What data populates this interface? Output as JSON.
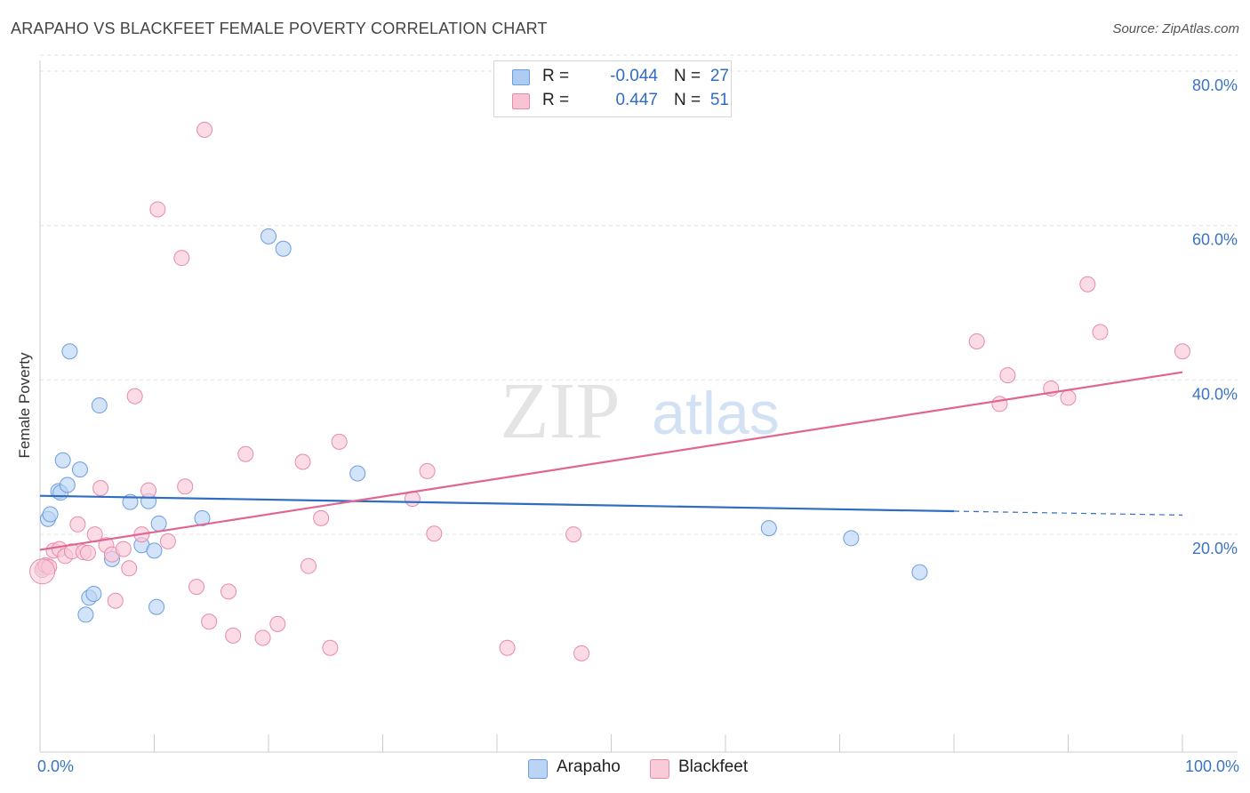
{
  "header": {
    "title": "ARAPAHO VS BLACKFEET FEMALE POVERTY CORRELATION CHART",
    "source": "Source: ZipAtlas.com"
  },
  "watermark": {
    "zip": "ZIP",
    "atlas": "atlas"
  },
  "stats": [
    {
      "r_label": "R =",
      "r_value": "-0.044",
      "n_label": "N =",
      "n_value": "27",
      "color": "#aecbf2",
      "border": "#6b9ee0"
    },
    {
      "r_label": "R =",
      "r_value": "0.447",
      "n_label": "N =",
      "n_value": "51",
      "color": "#f8c3d3",
      "border": "#e88aa8"
    }
  ],
  "legend": [
    {
      "label": "Arapaho",
      "color": "#bcd4f4",
      "border": "#6b9ee0"
    },
    {
      "label": "Blackfeet",
      "color": "#f9cad8",
      "border": "#e88aa8"
    }
  ],
  "chart_data": {
    "type": "scatter",
    "title": "ARAPAHO VS BLACKFEET FEMALE POVERTY CORRELATION CHART",
    "xlabel_left": "0.0%",
    "xlabel_right": "100.0%",
    "ylabel": "Female Poverty",
    "xlim": [
      0,
      100
    ],
    "ylim": [
      0,
      80
    ],
    "y_ticks": [
      20,
      40,
      60,
      80
    ],
    "y_tick_labels": [
      "20.0%",
      "40.0%",
      "60.0%",
      "80.0%"
    ],
    "grid": true,
    "series": [
      {
        "name": "Arapaho",
        "color": "#6b9ee0",
        "fill": "#bcd4f4",
        "line_color": "#2f6dc4",
        "trend": {
          "x0": 0,
          "y0": 25.0,
          "x1": 80,
          "y1": 23.0,
          "dash_to_x": 100,
          "dash_to_y": 22.5
        },
        "points": [
          [
            0.3,
            15.7
          ],
          [
            0.7,
            22.0
          ],
          [
            0.9,
            22.6
          ],
          [
            1.6,
            25.6
          ],
          [
            1.8,
            25.4
          ],
          [
            2.0,
            29.6
          ],
          [
            2.4,
            26.4
          ],
          [
            2.6,
            43.7
          ],
          [
            3.5,
            28.4
          ],
          [
            4.0,
            9.6
          ],
          [
            4.3,
            11.8
          ],
          [
            4.7,
            12.3
          ],
          [
            5.2,
            36.7
          ],
          [
            6.3,
            16.8
          ],
          [
            7.9,
            24.2
          ],
          [
            8.9,
            18.6
          ],
          [
            9.5,
            24.3
          ],
          [
            10.0,
            17.9
          ],
          [
            10.2,
            10.6
          ],
          [
            10.4,
            21.4
          ],
          [
            14.2,
            22.1
          ],
          [
            20.0,
            58.6
          ],
          [
            21.3,
            57.0
          ],
          [
            27.8,
            27.9
          ],
          [
            63.8,
            20.8
          ],
          [
            71.0,
            19.5
          ],
          [
            77.0,
            15.1
          ]
        ]
      },
      {
        "name": "Blackfeet",
        "color": "#e88aa8",
        "fill": "#f9cad8",
        "line_color": "#e0668f",
        "trend": {
          "x0": 0,
          "y0": 18.0,
          "x1": 100,
          "y1": 41.0
        },
        "points": [
          [
            0.2,
            15.4
          ],
          [
            0.5,
            16.0
          ],
          [
            0.8,
            15.8
          ],
          [
            1.2,
            17.9
          ],
          [
            1.7,
            18.1
          ],
          [
            2.2,
            17.2
          ],
          [
            2.8,
            17.8
          ],
          [
            3.3,
            21.3
          ],
          [
            3.8,
            17.7
          ],
          [
            4.2,
            17.6
          ],
          [
            4.8,
            20.0
          ],
          [
            5.3,
            26.0
          ],
          [
            5.8,
            18.6
          ],
          [
            6.3,
            17.4
          ],
          [
            6.6,
            11.4
          ],
          [
            7.3,
            18.1
          ],
          [
            7.8,
            15.6
          ],
          [
            8.3,
            37.9
          ],
          [
            8.9,
            20.0
          ],
          [
            9.5,
            25.7
          ],
          [
            10.3,
            62.1
          ],
          [
            11.2,
            19.1
          ],
          [
            12.4,
            55.8
          ],
          [
            12.7,
            26.2
          ],
          [
            13.7,
            13.2
          ],
          [
            14.4,
            72.4
          ],
          [
            14.8,
            8.7
          ],
          [
            16.5,
            12.6
          ],
          [
            16.9,
            6.9
          ],
          [
            18.0,
            30.4
          ],
          [
            19.5,
            6.6
          ],
          [
            20.8,
            8.4
          ],
          [
            23.0,
            29.4
          ],
          [
            23.5,
            15.9
          ],
          [
            24.6,
            22.1
          ],
          [
            25.4,
            5.3
          ],
          [
            26.2,
            32.0
          ],
          [
            32.6,
            24.6
          ],
          [
            33.9,
            28.2
          ],
          [
            34.5,
            20.1
          ],
          [
            40.9,
            5.3
          ],
          [
            46.7,
            20.0
          ],
          [
            47.4,
            4.6
          ],
          [
            82.0,
            45.0
          ],
          [
            84.0,
            36.9
          ],
          [
            84.7,
            40.6
          ],
          [
            88.5,
            38.9
          ],
          [
            90.0,
            37.7
          ],
          [
            91.7,
            52.4
          ],
          [
            92.8,
            46.2
          ],
          [
            100.0,
            43.7
          ]
        ]
      }
    ]
  }
}
